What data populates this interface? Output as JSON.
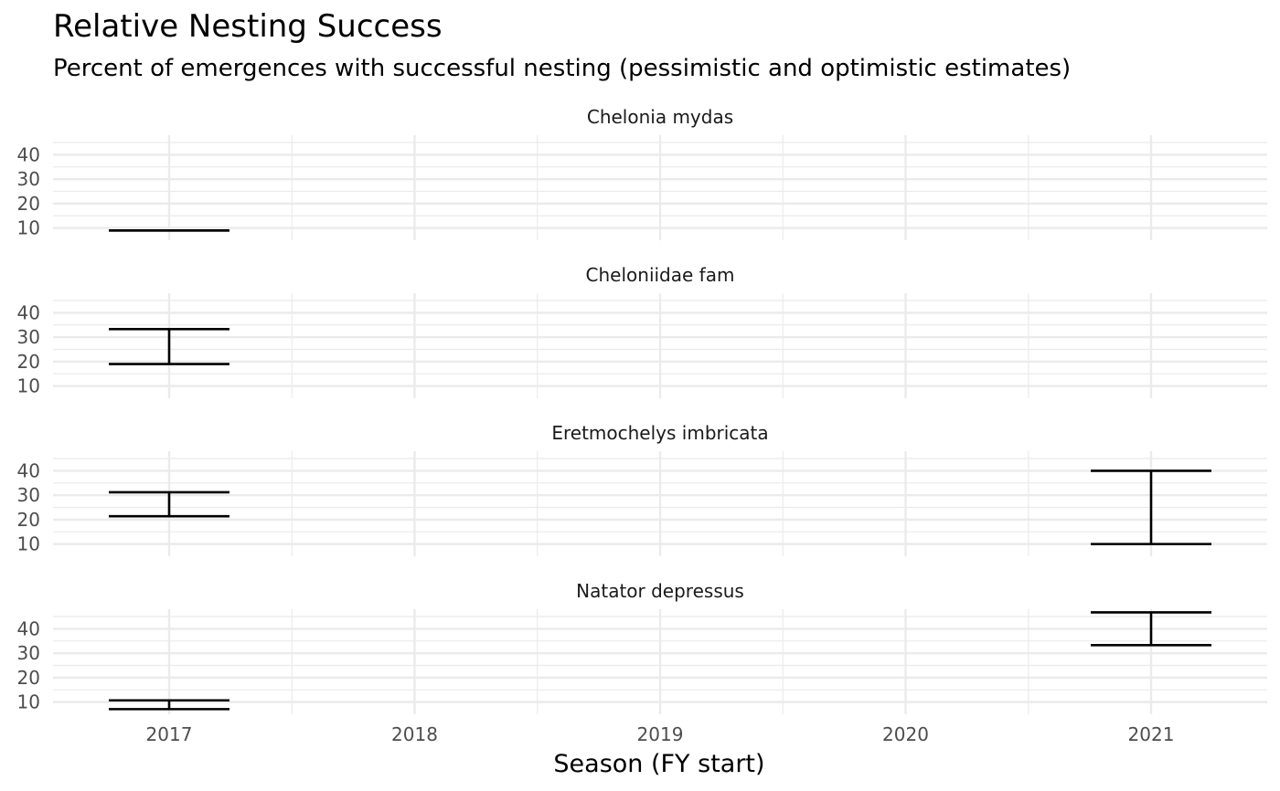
{
  "chart_data": {
    "type": "errorbar",
    "title": "Relative Nesting Success",
    "subtitle": "Percent of emergences with successful nesting (pessimistic and optimistic estimates)",
    "xlabel": "Season (FY start)",
    "ylabel": "",
    "x_ticks": [
      "2017",
      "2018",
      "2019",
      "2020",
      "2021"
    ],
    "y_ticks": [
      10,
      20,
      30,
      40
    ],
    "ylim": [
      5,
      48
    ],
    "grid": true,
    "facets": [
      {
        "label": "Chelonia mydas",
        "series": [
          {
            "x": "2017",
            "low": 9,
            "high": 9
          }
        ]
      },
      {
        "label": "Cheloniidae fam",
        "series": [
          {
            "x": "2017",
            "low": 19,
            "high": 33.3
          }
        ]
      },
      {
        "label": "Eretmochelys imbricata",
        "series": [
          {
            "x": "2017",
            "low": 21.4,
            "high": 31.2
          },
          {
            "x": "2021",
            "low": 10,
            "high": 40
          }
        ]
      },
      {
        "label": "Natator depressus",
        "series": [
          {
            "x": "2017",
            "low": 7.1,
            "high": 10.7
          },
          {
            "x": "2021",
            "low": 33.3,
            "high": 46.7
          }
        ]
      }
    ],
    "colors": {
      "bar": "#000000",
      "grid": "#ebebeb",
      "text": "#1a1a1a",
      "tick": "#4d4d4d"
    }
  }
}
